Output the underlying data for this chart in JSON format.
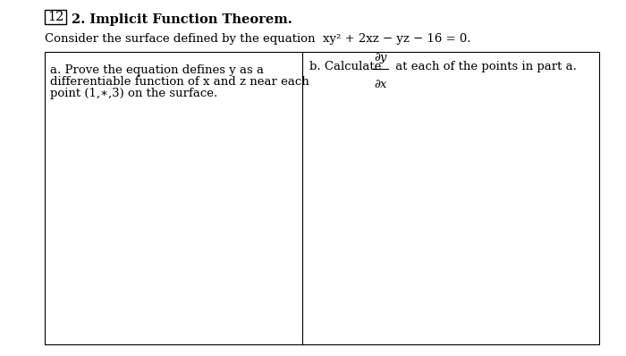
{
  "problem_number": "12",
  "section_number": "2.",
  "title": "Implicit Function Theorem.",
  "intro_full": "Consider the surface defined by the equation  xy² + 2xz − yz − 16 = 0.",
  "cell_a_line1": "a. Prove the equation defines y as a",
  "cell_a_line2": "differentiable function of x and z near each",
  "cell_a_line3": "point (1,∗,3) on the surface.",
  "cell_b_prefix": "b. Calculate ",
  "cell_b_num": "∂y",
  "cell_b_den": "∂x",
  "cell_b_suffix": " at each of the points in part a.",
  "bg_color": "#ffffff",
  "text_color": "#000000",
  "box_color": "#000000",
  "title_fontsize": 10.5,
  "body_fontsize": 9.5,
  "fig_width": 7.0,
  "fig_height": 3.98,
  "dpi": 100
}
